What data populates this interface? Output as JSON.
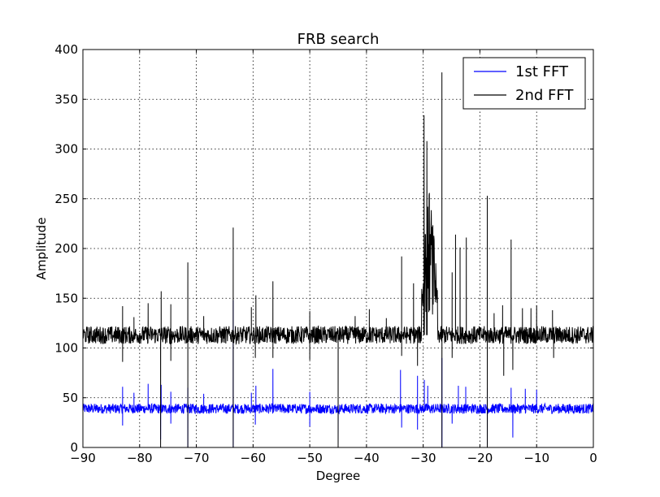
{
  "chart_data": {
    "type": "line",
    "title": "FRB search",
    "xlabel": "Degree",
    "ylabel": "Amplitude",
    "xlim": [
      -90,
      0
    ],
    "ylim": [
      0,
      400
    ],
    "xticks": [
      -90,
      -80,
      -70,
      -60,
      -50,
      -40,
      -30,
      -20,
      -10,
      0
    ],
    "yticks": [
      0,
      50,
      100,
      150,
      200,
      250,
      300,
      350,
      400
    ],
    "xtick_labels": [
      "−90",
      "−80",
      "−70",
      "−60",
      "−50",
      "−40",
      "−30",
      "−20",
      "−10",
      "0"
    ],
    "ytick_labels": [
      "0",
      "50",
      "100",
      "150",
      "200",
      "250",
      "300",
      "350",
      "400"
    ],
    "grid": true,
    "legend": "top-right",
    "series": [
      {
        "name": "1st FFT",
        "color": "#0000ff",
        "baseline": 39,
        "noise_amplitude": 5,
        "spikes": [
          {
            "x": -83.0,
            "y": 61
          },
          {
            "x": -81.0,
            "y": 55
          },
          {
            "x": -78.5,
            "y": 64
          },
          {
            "x": -76.2,
            "y": 63
          },
          {
            "x": -74.5,
            "y": 56
          },
          {
            "x": -71.5,
            "y": 60
          },
          {
            "x": -68.7,
            "y": 54
          },
          {
            "x": -63.5,
            "y": 148
          },
          {
            "x": -60.3,
            "y": 55
          },
          {
            "x": -59.5,
            "y": 62
          },
          {
            "x": -56.5,
            "y": 79
          },
          {
            "x": -50.0,
            "y": 56
          },
          {
            "x": -34.0,
            "y": 78
          },
          {
            "x": -31.0,
            "y": 72
          },
          {
            "x": -29.8,
            "y": 68
          },
          {
            "x": -29.2,
            "y": 62
          },
          {
            "x": -26.7,
            "y": 90
          },
          {
            "x": -23.8,
            "y": 62
          },
          {
            "x": -22.5,
            "y": 61
          },
          {
            "x": -18.7,
            "y": 60
          },
          {
            "x": -14.5,
            "y": 60
          },
          {
            "x": -12.0,
            "y": 59
          },
          {
            "x": -10.0,
            "y": 58
          }
        ],
        "dips": [
          {
            "x": -83.0,
            "y": 22
          },
          {
            "x": -76.3,
            "y": 8
          },
          {
            "x": -74.5,
            "y": 24
          },
          {
            "x": -71.5,
            "y": 0
          },
          {
            "x": -63.5,
            "y": 0
          },
          {
            "x": -59.6,
            "y": 23
          },
          {
            "x": -50.0,
            "y": 21
          },
          {
            "x": -45.0,
            "y": 0
          },
          {
            "x": -33.8,
            "y": 20
          },
          {
            "x": -31.0,
            "y": 18
          },
          {
            "x": -26.7,
            "y": 0
          },
          {
            "x": -24.9,
            "y": 24
          },
          {
            "x": -18.7,
            "y": 0
          },
          {
            "x": -14.2,
            "y": 10
          }
        ]
      },
      {
        "name": "2nd FFT",
        "color": "#000000",
        "baseline": 113,
        "noise_amplitude": 9,
        "burst_region": {
          "x_start": -30.3,
          "x_end": -27.5,
          "peak": 334,
          "typical": 200
        },
        "spikes": [
          {
            "x": -83.0,
            "y": 142
          },
          {
            "x": -81.0,
            "y": 131
          },
          {
            "x": -78.5,
            "y": 145
          },
          {
            "x": -76.2,
            "y": 157
          },
          {
            "x": -74.5,
            "y": 144
          },
          {
            "x": -71.5,
            "y": 186
          },
          {
            "x": -68.7,
            "y": 132
          },
          {
            "x": -63.5,
            "y": 221
          },
          {
            "x": -60.3,
            "y": 141
          },
          {
            "x": -59.5,
            "y": 153
          },
          {
            "x": -56.5,
            "y": 167
          },
          {
            "x": -50.0,
            "y": 137
          },
          {
            "x": -45.0,
            "y": 118
          },
          {
            "x": -42.0,
            "y": 132
          },
          {
            "x": -39.5,
            "y": 139
          },
          {
            "x": -36.5,
            "y": 130
          },
          {
            "x": -33.8,
            "y": 192
          },
          {
            "x": -31.7,
            "y": 165
          },
          {
            "x": -26.7,
            "y": 377
          },
          {
            "x": -24.9,
            "y": 176
          },
          {
            "x": -24.3,
            "y": 214
          },
          {
            "x": -23.5,
            "y": 201
          },
          {
            "x": -22.4,
            "y": 211
          },
          {
            "x": -18.7,
            "y": 253
          },
          {
            "x": -17.5,
            "y": 135
          },
          {
            "x": -16.0,
            "y": 143
          },
          {
            "x": -14.5,
            "y": 209
          },
          {
            "x": -12.5,
            "y": 140
          },
          {
            "x": -11.0,
            "y": 140
          },
          {
            "x": -10.0,
            "y": 143
          },
          {
            "x": -7.2,
            "y": 138
          }
        ],
        "dips": [
          {
            "x": -83.0,
            "y": 86
          },
          {
            "x": -76.3,
            "y": 0
          },
          {
            "x": -74.5,
            "y": 87
          },
          {
            "x": -71.5,
            "y": 0
          },
          {
            "x": -63.5,
            "y": 0
          },
          {
            "x": -59.6,
            "y": 90
          },
          {
            "x": -56.5,
            "y": 90
          },
          {
            "x": -50.0,
            "y": 88
          },
          {
            "x": -45.0,
            "y": 0
          },
          {
            "x": -33.8,
            "y": 92
          },
          {
            "x": -31.0,
            "y": 82
          },
          {
            "x": -26.7,
            "y": 0
          },
          {
            "x": -24.9,
            "y": 90
          },
          {
            "x": -18.7,
            "y": 0
          },
          {
            "x": -15.8,
            "y": 72
          },
          {
            "x": -14.2,
            "y": 78
          },
          {
            "x": -7.0,
            "y": 90
          }
        ]
      }
    ]
  }
}
